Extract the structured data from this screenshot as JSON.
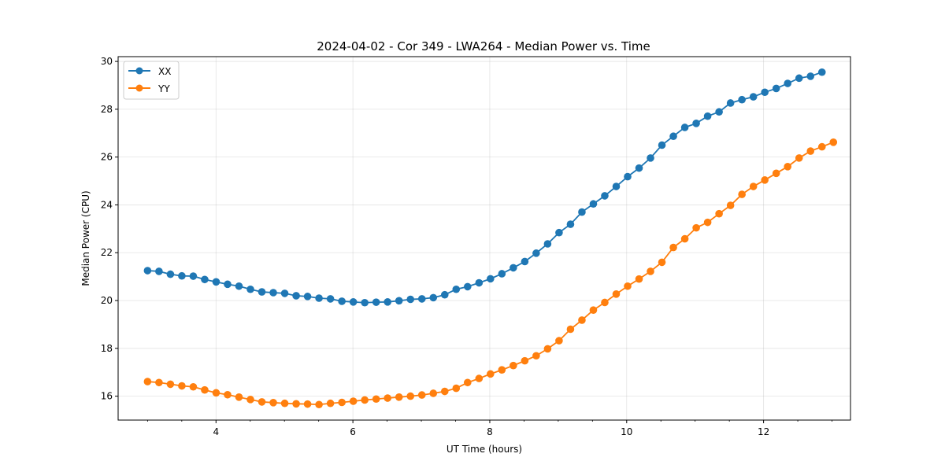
{
  "chart_data": {
    "type": "line",
    "title": "2024-04-02 - Cor 349 - LWA264 - Median Power vs. Time",
    "xlabel": "UT Time (hours)",
    "ylabel": "Median Power (CPU)",
    "xlim": [
      2.57,
      13.27
    ],
    "ylim": [
      15.0,
      30.2
    ],
    "xticks": [
      4,
      6,
      8,
      10,
      12
    ],
    "xtick_labels": [
      "4",
      "6",
      "8",
      "10",
      "12"
    ],
    "yticks": [
      16,
      18,
      20,
      22,
      24,
      26,
      28,
      30
    ],
    "ytick_labels": [
      "16",
      "18",
      "20",
      "22",
      "24",
      "26",
      "28",
      "30"
    ],
    "x_minor_step": 0.5,
    "grid": true,
    "legend_position": "top-left",
    "x_start": 3.0,
    "x_step": 0.167,
    "series": [
      {
        "name": "XX",
        "color": "#1f77b4",
        "values": [
          21.25,
          21.22,
          21.1,
          21.03,
          21.02,
          20.88,
          20.78,
          20.68,
          20.6,
          20.47,
          20.36,
          20.33,
          20.3,
          20.2,
          20.17,
          20.1,
          20.07,
          19.97,
          19.94,
          19.91,
          19.93,
          19.94,
          19.99,
          20.05,
          20.07,
          20.12,
          20.24,
          20.47,
          20.58,
          20.74,
          20.91,
          21.12,
          21.37,
          21.63,
          21.98,
          22.37,
          22.84,
          23.19,
          23.7,
          24.04,
          24.38,
          24.77,
          25.18,
          25.54,
          25.96,
          26.5,
          26.87,
          27.24,
          27.41,
          27.71,
          27.89,
          28.26,
          28.4,
          28.52,
          28.71,
          28.87,
          29.08,
          29.3,
          29.38,
          29.55
        ]
      },
      {
        "name": "YY",
        "color": "#ff7f0e",
        "values": [
          16.61,
          16.57,
          16.5,
          16.43,
          16.39,
          16.26,
          16.14,
          16.06,
          15.96,
          15.86,
          15.76,
          15.73,
          15.7,
          15.68,
          15.67,
          15.65,
          15.7,
          15.74,
          15.79,
          15.84,
          15.88,
          15.92,
          15.96,
          16.0,
          16.05,
          16.12,
          16.2,
          16.33,
          16.57,
          16.74,
          16.93,
          17.1,
          17.28,
          17.48,
          17.69,
          17.98,
          18.32,
          18.8,
          19.18,
          19.6,
          19.92,
          20.27,
          20.6,
          20.9,
          21.22,
          21.6,
          22.22,
          22.58,
          23.04,
          23.27,
          23.63,
          23.98,
          24.44,
          24.77,
          25.04,
          25.32,
          25.6,
          25.96,
          26.25,
          26.43,
          26.62
        ]
      }
    ]
  }
}
